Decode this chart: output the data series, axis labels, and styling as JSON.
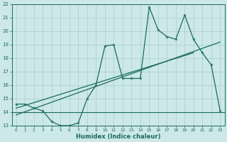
{
  "xlabel": "Humidex (Indice chaleur)",
  "bg_color": "#cce8e8",
  "grid_color": "#aacccc",
  "line_color": "#1a6b5a",
  "x_values": [
    0,
    1,
    2,
    3,
    4,
    5,
    6,
    7,
    8,
    9,
    10,
    11,
    12,
    13,
    14,
    15,
    16,
    17,
    18,
    19,
    20,
    21,
    22,
    23
  ],
  "y_main": [
    14.6,
    14.6,
    14.3,
    14.1,
    13.3,
    13.0,
    13.0,
    13.2,
    15.0,
    16.0,
    18.9,
    19.0,
    16.5,
    16.5,
    16.5,
    21.8,
    20.1,
    19.6,
    19.4,
    21.2,
    19.4,
    18.4,
    17.5,
    14.1
  ],
  "y_flat": 14.0,
  "trend1_x": [
    0,
    20
  ],
  "trend1_y": [
    14.3,
    18.4
  ],
  "trend2_x": [
    0,
    23
  ],
  "trend2_y": [
    13.8,
    19.2
  ],
  "ylim": [
    13,
    22
  ],
  "xlim": [
    -0.5,
    23.5
  ],
  "yticks": [
    13,
    14,
    15,
    16,
    17,
    18,
    19,
    20,
    21,
    22
  ],
  "xticks": [
    0,
    1,
    2,
    3,
    4,
    5,
    6,
    7,
    8,
    9,
    10,
    11,
    12,
    13,
    14,
    15,
    16,
    17,
    18,
    19,
    20,
    21,
    22,
    23
  ],
  "tick_fontsize": 5,
  "xlabel_fontsize": 6
}
